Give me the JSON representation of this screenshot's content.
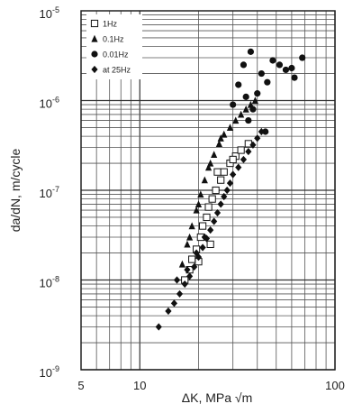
{
  "chart_data": {
    "type": "scatter",
    "xlabel": "ΔK, MPa √m",
    "ylabel": "da/dN, m/cycle",
    "x_scale": "log",
    "y_scale": "log",
    "xlim": [
      5,
      100
    ],
    "ylim": [
      1e-09,
      1e-05
    ],
    "x_ticks": [
      {
        "value": 5,
        "label": "5"
      },
      {
        "value": 10,
        "label": "10"
      },
      {
        "value": 100,
        "label": "100"
      }
    ],
    "y_ticks": [
      {
        "value": 1e-09,
        "base": "10",
        "exp": "-9"
      },
      {
        "value": 1e-08,
        "base": "10",
        "exp": "-8"
      },
      {
        "value": 1e-07,
        "base": "10",
        "exp": "-7"
      },
      {
        "value": 1e-06,
        "base": "10",
        "exp": "-6"
      },
      {
        "value": 1e-05,
        "base": "10",
        "exp": "-5"
      }
    ],
    "grid": true,
    "legend_position": "top-left",
    "series": [
      {
        "name": "1Hz",
        "marker": "open-square",
        "points": [
          [
            17.0,
            1e-08
          ],
          [
            18.0,
            1.3e-08
          ],
          [
            18.5,
            1.7e-08
          ],
          [
            19.5,
            2.2e-08
          ],
          [
            20.5,
            3e-08
          ],
          [
            21.0,
            4e-08
          ],
          [
            22.0,
            5e-08
          ],
          [
            22.5,
            6.5e-08
          ],
          [
            23.5,
            8e-08
          ],
          [
            24.5,
            1e-07
          ],
          [
            26.0,
            1.3e-07
          ],
          [
            27.0,
            1.6e-07
          ],
          [
            29.0,
            2e-07
          ],
          [
            31.0,
            2.4e-07
          ],
          [
            33.0,
            2.8e-07
          ],
          [
            36.0,
            3.3e-07
          ],
          [
            20.0,
            1.6e-08
          ],
          [
            23.0,
            2.5e-08
          ],
          [
            25.0,
            1.6e-07
          ],
          [
            30.0,
            2.2e-07
          ]
        ]
      },
      {
        "name": "0.1Hz",
        "marker": "filled-triangle",
        "points": [
          [
            16.5,
            1.5e-08
          ],
          [
            17.5,
            2.5e-08
          ],
          [
            18.5,
            4e-08
          ],
          [
            19.5,
            6e-08
          ],
          [
            20.5,
            9e-08
          ],
          [
            21.5,
            1.3e-07
          ],
          [
            22.5,
            1.8e-07
          ],
          [
            24.0,
            2.5e-07
          ],
          [
            25.5,
            3.3e-07
          ],
          [
            27.0,
            4.2e-07
          ],
          [
            29.0,
            5e-07
          ],
          [
            31.0,
            6e-07
          ],
          [
            33.0,
            7e-07
          ],
          [
            35.0,
            8e-07
          ],
          [
            37.0,
            9e-07
          ],
          [
            39.0,
            1e-06
          ],
          [
            18.0,
            3e-08
          ],
          [
            20.0,
            7e-08
          ],
          [
            23.0,
            2e-07
          ],
          [
            26.0,
            3.8e-07
          ]
        ]
      },
      {
        "name": "0.01Hz",
        "marker": "filled-circle",
        "points": [
          [
            30.0,
            9e-07
          ],
          [
            32.0,
            1.5e-06
          ],
          [
            34.0,
            2.5e-06
          ],
          [
            35.0,
            1.1e-06
          ],
          [
            37.0,
            3.5e-06
          ],
          [
            38.0,
            8e-07
          ],
          [
            40.0,
            1.2e-06
          ],
          [
            42.0,
            2e-06
          ],
          [
            45.0,
            1.6e-06
          ],
          [
            48.0,
            2.8e-06
          ],
          [
            52.0,
            2.5e-06
          ],
          [
            56.0,
            2.2e-06
          ],
          [
            60.0,
            2.3e-06
          ],
          [
            62.0,
            1.8e-06
          ],
          [
            68.0,
            3e-06
          ],
          [
            44.0,
            4.5e-07
          ],
          [
            36.0,
            6e-07
          ]
        ]
      },
      {
        "name": "at 25Hz",
        "marker": "filled-diamond",
        "points": [
          [
            12.5,
            3e-09
          ],
          [
            14.0,
            4.5e-09
          ],
          [
            15.0,
            5.5e-09
          ],
          [
            16.0,
            7e-09
          ],
          [
            17.0,
            9e-09
          ],
          [
            18.0,
            1.1e-08
          ],
          [
            19.0,
            1.4e-08
          ],
          [
            20.0,
            1.8e-08
          ],
          [
            21.0,
            2.3e-08
          ],
          [
            22.0,
            2.9e-08
          ],
          [
            23.0,
            3.6e-08
          ],
          [
            24.0,
            4.5e-08
          ],
          [
            25.0,
            5.6e-08
          ],
          [
            26.0,
            7e-08
          ],
          [
            27.0,
            8.5e-08
          ],
          [
            28.0,
            1e-07
          ],
          [
            29.0,
            1.2e-07
          ],
          [
            30.0,
            1.5e-07
          ],
          [
            32.0,
            1.8e-07
          ],
          [
            34.0,
            2.2e-07
          ],
          [
            36.0,
            2.7e-07
          ],
          [
            38.0,
            3.2e-07
          ],
          [
            40.0,
            3.8e-07
          ],
          [
            42.0,
            4.5e-07
          ],
          [
            15.5,
            1e-08
          ],
          [
            17.5,
            1.3e-08
          ],
          [
            19.5,
            2e-08
          ],
          [
            21.5,
            3e-08
          ]
        ]
      }
    ]
  }
}
